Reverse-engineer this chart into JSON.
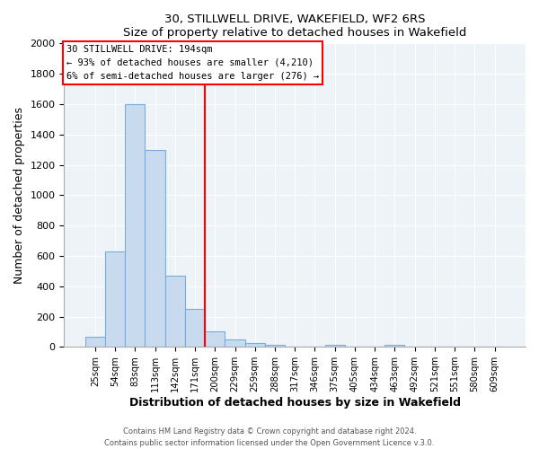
{
  "title": "30, STILLWELL DRIVE, WAKEFIELD, WF2 6RS",
  "subtitle": "Size of property relative to detached houses in Wakefield",
  "xlabel": "Distribution of detached houses by size in Wakefield",
  "ylabel": "Number of detached properties",
  "bar_color": "#c8daee",
  "bar_edgecolor": "#7aabdc",
  "vline_color": "red",
  "vline_x_index": 6,
  "annotation_title": "30 STILLWELL DRIVE: 194sqm",
  "annotation_line1": "← 93% of detached houses are smaller (4,210)",
  "annotation_line2": "6% of semi-detached houses are larger (276) →",
  "categories": [
    "25sqm",
    "54sqm",
    "83sqm",
    "113sqm",
    "142sqm",
    "171sqm",
    "200sqm",
    "229sqm",
    "259sqm",
    "288sqm",
    "317sqm",
    "346sqm",
    "375sqm",
    "405sqm",
    "434sqm",
    "463sqm",
    "492sqm",
    "521sqm",
    "551sqm",
    "580sqm",
    "609sqm"
  ],
  "values": [
    65,
    630,
    1600,
    1300,
    470,
    250,
    100,
    50,
    25,
    15,
    0,
    0,
    15,
    0,
    0,
    15,
    0,
    0,
    0,
    0,
    0
  ],
  "ylim": [
    0,
    2000
  ],
  "yticks": [
    0,
    200,
    400,
    600,
    800,
    1000,
    1200,
    1400,
    1600,
    1800,
    2000
  ],
  "footnote1": "Contains HM Land Registry data © Crown copyright and database right 2024.",
  "footnote2": "Contains public sector information licensed under the Open Government Licence v.3.0.",
  "bg_color": "#eef3f8"
}
